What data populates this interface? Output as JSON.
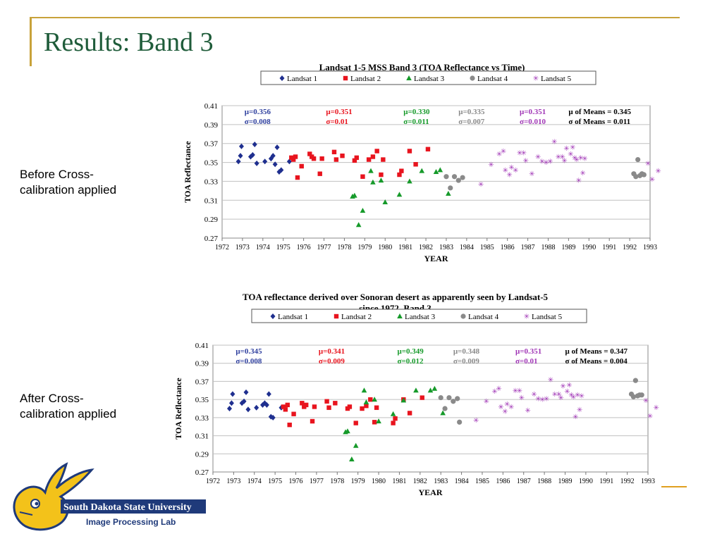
{
  "slide": {
    "title": "Results: Band 3",
    "before_label_1": "Before Cross-",
    "before_label_2": "calibration applied",
    "after_label_1": "After Cross-",
    "after_label_2": "calibration applied",
    "logo_line1": "South Dakota State University",
    "logo_line2": "Image Processing Lab"
  },
  "colors": {
    "accent": "#c8a23a",
    "title": "#1f5c3a",
    "landsat1": "#1f2f8f",
    "landsat2": "#e8141e",
    "landsat3": "#169a2a",
    "landsat4": "#8a8a8a",
    "landsat5": "#a036b6"
  },
  "chart_data": [
    {
      "type": "scatter",
      "title": "Landsat 1-5 MSS Band 3 (TOA Reflectance vs Time)",
      "xlabel": "YEAR",
      "ylabel": "TOA Reflectance",
      "xlim": [
        1972,
        1993
      ],
      "ylim": [
        0.27,
        0.41
      ],
      "xticks": [
        "1972",
        "1973",
        "1974",
        "1975",
        "1976",
        "1977",
        "1978",
        "1979",
        "1980",
        "1981",
        "1982",
        "1983",
        "1984",
        "1985",
        "1986",
        "1987",
        "1988",
        "1989",
        "1990",
        "1991",
        "1992",
        "1993"
      ],
      "yticks": [
        "0.27",
        "0.29",
        "0.31",
        "0.33",
        "0.35",
        "0.37",
        "0.39",
        "0.41"
      ],
      "legend": [
        "Landsat 1",
        "Landsat 2",
        "Landsat 3",
        "Landsat 4",
        "Landsat 5"
      ],
      "legend_position": "top",
      "annotations": [
        {
          "line1": "μ=0.356",
          "line2": "σ=0.008",
          "color": "#2e3f9e",
          "x": 1973.1
        },
        {
          "line1": "μ=0.351",
          "line2": "σ=0.01",
          "color": "#e8141e",
          "x": 1977.1
        },
        {
          "line1": "μ=0.330",
          "line2": "σ=0.011",
          "color": "#169a2a",
          "x": 1980.9
        },
        {
          "line1": "μ=0.335",
          "line2": "σ=0.007",
          "color": "#8a8a8a",
          "x": 1983.6
        },
        {
          "line1": "μ=0.351",
          "line2": "σ=0.010",
          "color": "#a036b6",
          "x": 1986.6
        },
        {
          "line1": "μ of Means = 0.345",
          "line2": "σ of Means = 0.011",
          "color": "#000000",
          "x": 1989.0
        }
      ],
      "series": [
        {
          "name": "Landsat 1",
          "marker": "diamond",
          "points": [
            [
              1972.8,
              0.351
            ],
            [
              1972.9,
              0.357
            ],
            [
              1972.95,
              0.367
            ],
            [
              1973.4,
              0.356
            ],
            [
              1973.5,
              0.358
            ],
            [
              1973.6,
              0.369
            ],
            [
              1973.7,
              0.349
            ],
            [
              1974.1,
              0.351
            ],
            [
              1974.4,
              0.354
            ],
            [
              1974.5,
              0.357
            ],
            [
              1974.6,
              0.348
            ],
            [
              1974.7,
              0.366
            ],
            [
              1974.8,
              0.34
            ],
            [
              1974.9,
              0.342
            ],
            [
              1975.3,
              0.351
            ]
          ]
        },
        {
          "name": "Landsat 2",
          "marker": "square",
          "points": [
            [
              1975.4,
              0.355
            ],
            [
              1975.5,
              0.353
            ],
            [
              1975.6,
              0.356
            ],
            [
              1975.7,
              0.334
            ],
            [
              1975.9,
              0.346
            ],
            [
              1976.3,
              0.359
            ],
            [
              1976.4,
              0.356
            ],
            [
              1976.5,
              0.354
            ],
            [
              1976.8,
              0.338
            ],
            [
              1976.9,
              0.354
            ],
            [
              1977.5,
              0.361
            ],
            [
              1977.6,
              0.353
            ],
            [
              1977.9,
              0.357
            ],
            [
              1978.5,
              0.352
            ],
            [
              1978.6,
              0.355
            ],
            [
              1978.9,
              0.335
            ],
            [
              1979.2,
              0.353
            ],
            [
              1979.4,
              0.356
            ],
            [
              1979.6,
              0.362
            ],
            [
              1979.8,
              0.337
            ],
            [
              1979.9,
              0.353
            ],
            [
              1980.7,
              0.337
            ],
            [
              1980.8,
              0.341
            ],
            [
              1981.2,
              0.362
            ],
            [
              1981.5,
              0.348
            ],
            [
              1982.1,
              0.364
            ]
          ]
        },
        {
          "name": "Landsat 3",
          "marker": "triangle",
          "points": [
            [
              1978.4,
              0.314
            ],
            [
              1978.5,
              0.315
            ],
            [
              1978.7,
              0.284
            ],
            [
              1978.9,
              0.299
            ],
            [
              1979.3,
              0.341
            ],
            [
              1979.4,
              0.329
            ],
            [
              1979.8,
              0.331
            ],
            [
              1980.0,
              0.308
            ],
            [
              1980.7,
              0.316
            ],
            [
              1981.2,
              0.33
            ],
            [
              1981.8,
              0.341
            ],
            [
              1982.5,
              0.34
            ],
            [
              1982.7,
              0.342
            ],
            [
              1983.1,
              0.317
            ]
          ]
        },
        {
          "name": "Landsat 4",
          "marker": "circle",
          "points": [
            [
              1983.0,
              0.335
            ],
            [
              1983.2,
              0.323
            ],
            [
              1983.4,
              0.335
            ],
            [
              1983.6,
              0.331
            ],
            [
              1983.8,
              0.334
            ]
          ]
        },
        {
          "name": "Landsat 5",
          "marker": "star",
          "points": [
            [
              1984.7,
              0.327
            ],
            [
              1985.2,
              0.348
            ],
            [
              1985.6,
              0.359
            ],
            [
              1985.8,
              0.362
            ],
            [
              1985.9,
              0.342
            ],
            [
              1986.1,
              0.337
            ],
            [
              1986.2,
              0.345
            ],
            [
              1986.4,
              0.342
            ],
            [
              1986.6,
              0.36
            ],
            [
              1986.8,
              0.36
            ],
            [
              1986.9,
              0.352
            ],
            [
              1987.2,
              0.338
            ],
            [
              1987.5,
              0.356
            ],
            [
              1987.7,
              0.351
            ],
            [
              1987.9,
              0.35
            ],
            [
              1988.1,
              0.351
            ],
            [
              1988.3,
              0.372
            ],
            [
              1988.5,
              0.356
            ],
            [
              1988.7,
              0.356
            ],
            [
              1988.8,
              0.352
            ],
            [
              1988.9,
              0.365
            ],
            [
              1989.1,
              0.359
            ],
            [
              1989.2,
              0.366
            ],
            [
              1989.3,
              0.355
            ],
            [
              1989.4,
              0.353
            ],
            [
              1989.6,
              0.355
            ],
            [
              1989.7,
              0.339
            ],
            [
              1989.5,
              0.331
            ],
            [
              1989.8,
              0.354
            ],
            [
              1992.9,
              0.349
            ],
            [
              1993.1,
              0.332
            ],
            [
              1993.4,
              0.341
            ]
          ]
        },
        {
          "name": "Landsat 4",
          "marker": "circle",
          "points": [
            [
              1992.2,
              0.338
            ],
            [
              1992.3,
              0.335
            ],
            [
              1992.4,
              0.353
            ],
            [
              1992.5,
              0.336
            ],
            [
              1992.6,
              0.338
            ],
            [
              1992.7,
              0.337
            ]
          ]
        }
      ]
    },
    {
      "type": "scatter",
      "title": "TOA reflectance derived over Sonoran desert as apparently seen by Landsat-5 since 1972,  Band 3",
      "xlabel": "YEAR",
      "ylabel": "TOA Reflectance",
      "xlim": [
        1972,
        1993
      ],
      "ylim": [
        0.27,
        0.41
      ],
      "xticks": [
        "1972",
        "1973",
        "1974",
        "1975",
        "1976",
        "1977",
        "1978",
        "1979",
        "1980",
        "1981",
        "1982",
        "1983",
        "1984",
        "1985",
        "1986",
        "1987",
        "1988",
        "1989",
        "1990",
        "1991",
        "1992",
        "1993"
      ],
      "yticks": [
        "0.27",
        "0.29",
        "0.31",
        "0.33",
        "0.35",
        "0.37",
        "0.39",
        "0.41"
      ],
      "legend": [
        "Landsat 1",
        "Landsat 2",
        "Landsat 3",
        "Landsat 4",
        "Landsat 5"
      ],
      "legend_position": "top",
      "annotations": [
        {
          "line1": "μ=0.345",
          "line2": "σ=0.008",
          "color": "#2e3f9e",
          "x": 1973.1
        },
        {
          "line1": "μ=0.341",
          "line2": "σ=0.009",
          "color": "#e8141e",
          "x": 1977.1
        },
        {
          "line1": "μ=0.349",
          "line2": "σ=0.012",
          "color": "#169a2a",
          "x": 1980.9
        },
        {
          "line1": "μ=0.348",
          "line2": "σ=0.009",
          "color": "#8a8a8a",
          "x": 1983.6
        },
        {
          "line1": "μ=0.351",
          "line2": "σ=0.01",
          "color": "#a036b6",
          "x": 1986.6
        },
        {
          "line1": "μ of Means = 0.347",
          "line2": "σ of Means = 0.004",
          "color": "#000000",
          "x": 1989.0
        }
      ],
      "series": [
        {
          "name": "Landsat 1",
          "marker": "diamond",
          "points": [
            [
              1972.8,
              0.34
            ],
            [
              1972.9,
              0.346
            ],
            [
              1972.95,
              0.356
            ],
            [
              1973.4,
              0.346
            ],
            [
              1973.5,
              0.348
            ],
            [
              1973.6,
              0.358
            ],
            [
              1973.7,
              0.339
            ],
            [
              1974.1,
              0.341
            ],
            [
              1974.4,
              0.344
            ],
            [
              1974.5,
              0.346
            ],
            [
              1974.6,
              0.344
            ],
            [
              1974.7,
              0.356
            ],
            [
              1974.8,
              0.331
            ],
            [
              1974.9,
              0.33
            ],
            [
              1975.3,
              0.341
            ]
          ]
        },
        {
          "name": "Landsat 2",
          "marker": "square",
          "points": [
            [
              1975.4,
              0.342
            ],
            [
              1975.5,
              0.339
            ],
            [
              1975.6,
              0.344
            ],
            [
              1975.7,
              0.322
            ],
            [
              1975.9,
              0.334
            ],
            [
              1976.3,
              0.346
            ],
            [
              1976.4,
              0.342
            ],
            [
              1976.5,
              0.344
            ],
            [
              1976.8,
              0.326
            ],
            [
              1976.9,
              0.342
            ],
            [
              1977.5,
              0.348
            ],
            [
              1977.6,
              0.341
            ],
            [
              1977.9,
              0.346
            ],
            [
              1978.5,
              0.34
            ],
            [
              1978.6,
              0.342
            ],
            [
              1978.9,
              0.324
            ],
            [
              1979.2,
              0.34
            ],
            [
              1979.4,
              0.343
            ],
            [
              1979.6,
              0.35
            ],
            [
              1979.8,
              0.325
            ],
            [
              1979.9,
              0.341
            ],
            [
              1980.7,
              0.324
            ],
            [
              1980.8,
              0.329
            ],
            [
              1981.2,
              0.35
            ],
            [
              1981.5,
              0.335
            ],
            [
              1982.1,
              0.352
            ]
          ]
        },
        {
          "name": "Landsat 3",
          "marker": "triangle",
          "points": [
            [
              1978.4,
              0.314
            ],
            [
              1978.5,
              0.315
            ],
            [
              1978.7,
              0.284
            ],
            [
              1978.9,
              0.299
            ],
            [
              1979.3,
              0.36
            ],
            [
              1979.4,
              0.347
            ],
            [
              1979.8,
              0.35
            ],
            [
              1980.0,
              0.326
            ],
            [
              1980.7,
              0.334
            ],
            [
              1981.2,
              0.349
            ],
            [
              1981.8,
              0.36
            ],
            [
              1982.5,
              0.36
            ],
            [
              1982.7,
              0.362
            ],
            [
              1983.1,
              0.335
            ]
          ]
        },
        {
          "name": "Landsat 4",
          "marker": "circle",
          "points": [
            [
              1983.0,
              0.352
            ],
            [
              1983.2,
              0.34
            ],
            [
              1983.4,
              0.352
            ],
            [
              1983.6,
              0.348
            ],
            [
              1983.8,
              0.351
            ],
            [
              1983.9,
              0.325
            ]
          ]
        },
        {
          "name": "Landsat 5",
          "marker": "star",
          "points": [
            [
              1984.7,
              0.327
            ],
            [
              1985.2,
              0.348
            ],
            [
              1985.6,
              0.359
            ],
            [
              1985.8,
              0.362
            ],
            [
              1985.9,
              0.342
            ],
            [
              1986.1,
              0.337
            ],
            [
              1986.2,
              0.345
            ],
            [
              1986.4,
              0.342
            ],
            [
              1986.6,
              0.36
            ],
            [
              1986.8,
              0.36
            ],
            [
              1986.9,
              0.352
            ],
            [
              1987.2,
              0.338
            ],
            [
              1987.5,
              0.356
            ],
            [
              1987.7,
              0.351
            ],
            [
              1987.9,
              0.35
            ],
            [
              1988.1,
              0.351
            ],
            [
              1988.3,
              0.372
            ],
            [
              1988.5,
              0.356
            ],
            [
              1988.7,
              0.356
            ],
            [
              1988.8,
              0.352
            ],
            [
              1988.9,
              0.365
            ],
            [
              1989.1,
              0.359
            ],
            [
              1989.2,
              0.366
            ],
            [
              1989.3,
              0.355
            ],
            [
              1989.4,
              0.353
            ],
            [
              1989.6,
              0.355
            ],
            [
              1989.7,
              0.339
            ],
            [
              1989.5,
              0.331
            ],
            [
              1989.8,
              0.354
            ],
            [
              1992.9,
              0.349
            ],
            [
              1993.1,
              0.332
            ],
            [
              1993.4,
              0.341
            ]
          ]
        },
        {
          "name": "Landsat 4",
          "marker": "circle",
          "points": [
            [
              1992.2,
              0.356
            ],
            [
              1992.3,
              0.353
            ],
            [
              1992.4,
              0.371
            ],
            [
              1992.5,
              0.354
            ],
            [
              1992.6,
              0.355
            ],
            [
              1992.7,
              0.355
            ]
          ]
        }
      ]
    }
  ]
}
